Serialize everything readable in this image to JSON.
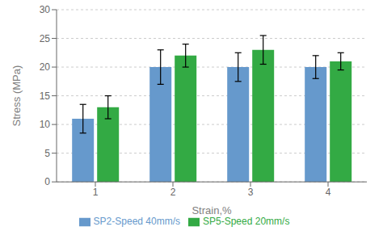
{
  "chart_data": {
    "type": "bar",
    "categories": [
      "1",
      "2",
      "3",
      "4"
    ],
    "series": [
      {
        "name": "SP2-Speed 40mm/s",
        "color": "#6699CC",
        "values": [
          11.0,
          20.0,
          20.0,
          20.0
        ],
        "errors": [
          2.5,
          3.0,
          2.5,
          2.0
        ]
      },
      {
        "name": "SP5-Speed 20mm/s",
        "color": "#33AA44",
        "values": [
          13.0,
          22.0,
          23.0,
          21.0
        ],
        "errors": [
          2.0,
          2.0,
          2.5,
          1.5
        ]
      }
    ],
    "xlabel": "Strain,%",
    "ylabel": "Stress (MPa)",
    "ylim": [
      0,
      30
    ],
    "yticks": [
      0,
      5,
      10,
      15,
      20,
      25,
      30
    ],
    "grid": true,
    "legend": "bottom"
  }
}
